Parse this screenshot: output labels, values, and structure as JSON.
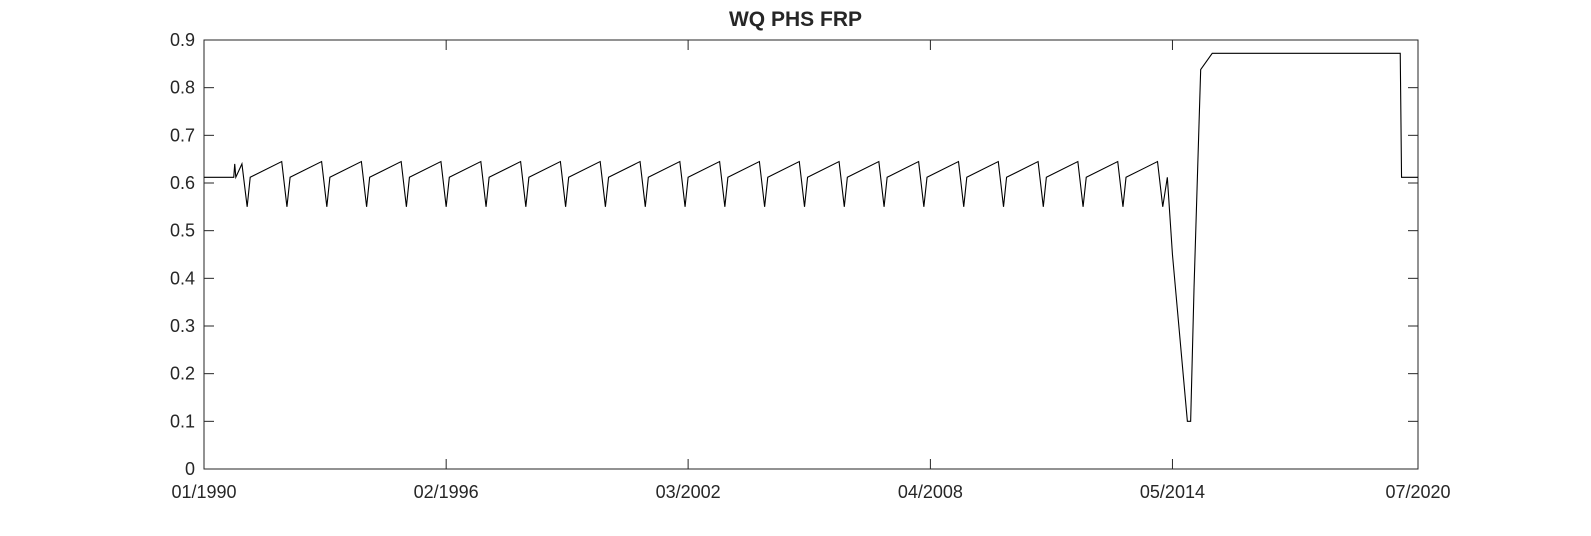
{
  "chart_data": {
    "type": "line",
    "title": "WQ PHS FRP",
    "xlabel": "",
    "ylabel": "",
    "ylim": [
      0,
      0.9
    ],
    "yticks": [
      0,
      0.1,
      0.2,
      0.3,
      0.4,
      0.5,
      0.6,
      0.7,
      0.8,
      0.9
    ],
    "xlim": [
      "1990-01-01",
      "2020-07-01"
    ],
    "xticks": [
      {
        "date": "1990-01-01",
        "label": "01/1990"
      },
      {
        "date": "1996-02-01",
        "label": "02/1996"
      },
      {
        "date": "2002-03-01",
        "label": "03/2002"
      },
      {
        "date": "2008-04-01",
        "label": "04/2008"
      },
      {
        "date": "2014-05-01",
        "label": "05/2014"
      },
      {
        "date": "2020-07-01",
        "label": "07/2020"
      }
    ],
    "grid": false,
    "line_color": "#000000",
    "series": [
      {
        "name": "",
        "cycle": {
          "first_year": 1991,
          "last_year": 2013,
          "points": [
            {
              "month_day": "02-01",
              "value": 0.55
            },
            {
              "month_day": "03-01",
              "value": 0.612
            },
            {
              "month_day": "12-15",
              "value": 0.645
            }
          ]
        },
        "points": [
          {
            "x": "1990-01-01",
            "y": 0.612
          },
          {
            "x": "1990-10-01",
            "y": 0.612
          },
          {
            "x": "1990-10-10",
            "y": 0.64
          },
          {
            "x": "1990-10-20",
            "y": 0.612
          },
          {
            "x": "1990-12-15",
            "y": 0.64
          },
          {
            "x": "2014-02-01",
            "y": 0.55
          },
          {
            "x": "2014-03-15",
            "y": 0.612
          },
          {
            "x": "2014-05-01",
            "y": 0.45
          },
          {
            "x": "2014-09-15",
            "y": 0.1
          },
          {
            "x": "2014-10-15",
            "y": 0.1
          },
          {
            "x": "2014-11-15",
            "y": 0.38
          },
          {
            "x": "2015-01-15",
            "y": 0.838
          },
          {
            "x": "2015-05-01",
            "y": 0.872
          },
          {
            "x": "2020-01-20",
            "y": 0.872
          },
          {
            "x": "2020-02-01",
            "y": 0.612
          },
          {
            "x": "2020-07-01",
            "y": 0.612
          }
        ]
      }
    ]
  }
}
